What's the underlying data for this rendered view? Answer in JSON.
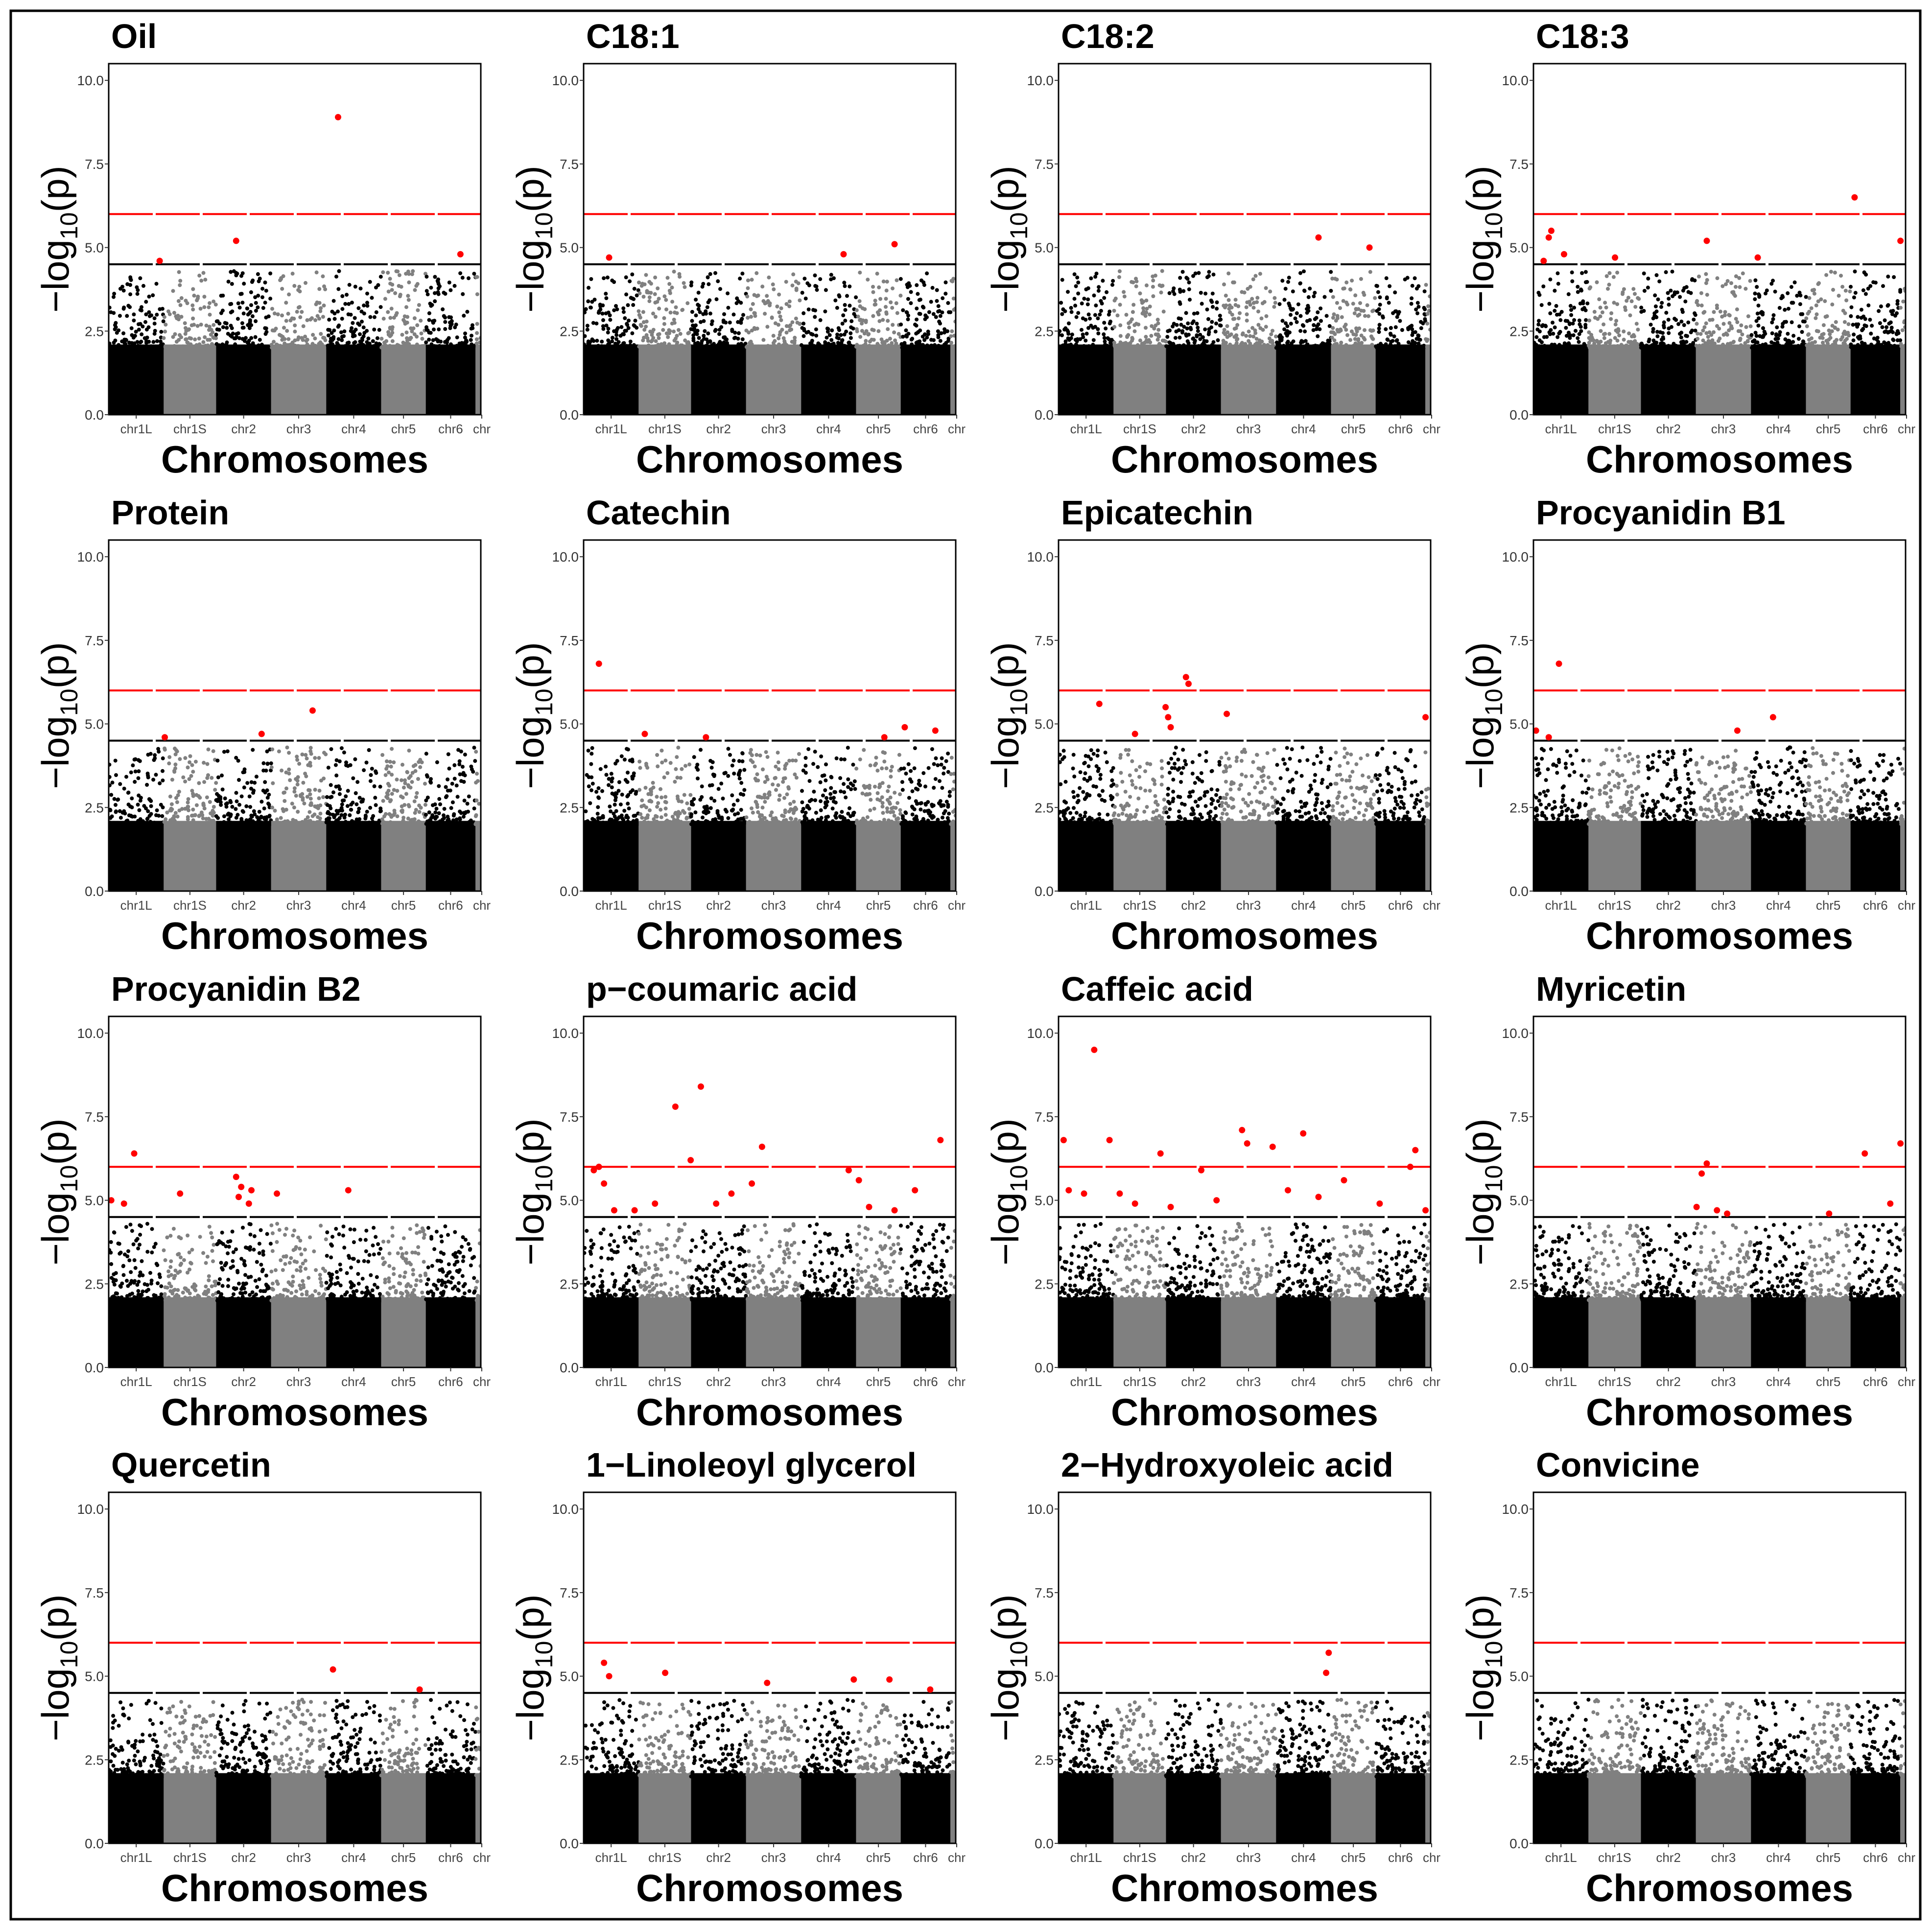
{
  "figure": {
    "border_color": "#000000",
    "background": "#ffffff"
  },
  "shared_axes": {
    "ylabel": "−log10(p)",
    "ylabel_main": "−log",
    "ylabel_sub": "10",
    "ylabel_arg": "(p)",
    "xlabel": "Chromosomes",
    "yticks": [
      "0.0",
      "2.5",
      "5.0",
      "7.5",
      "10.0"
    ],
    "ylim": [
      0,
      10.5
    ],
    "xticks": [
      "chr1L",
      "chr1S",
      "chr2",
      "chr3",
      "chr4",
      "chr5",
      "chr6",
      "chr"
    ],
    "significance_threshold": 6,
    "suggestive_threshold": 4.5,
    "colors": {
      "odd_chromosome": "#000000",
      "even_chromosome": "#808080",
      "significant_point": "#ff0000",
      "significance_line": "#ff0000",
      "suggestive_line": "#000000"
    }
  },
  "chart_data": [
    {
      "type": "scatter",
      "title": "Oil",
      "xlabel": "Chromosomes",
      "ylabel": "−log10(p)",
      "ylim": [
        0,
        10.5
      ],
      "peaks": [
        [
          1,
          4.6
        ],
        [
          2.5,
          5.2
        ],
        [
          4.5,
          8.9
        ],
        [
          6.9,
          4.8
        ]
      ]
    },
    {
      "type": "scatter",
      "title": "C18:1",
      "xlabel": "Chromosomes",
      "ylabel": "−log10(p)",
      "ylim": [
        0,
        10.5
      ],
      "peaks": [
        [
          0.5,
          4.7
        ],
        [
          5.1,
          4.8
        ],
        [
          6.1,
          5.1
        ]
      ]
    },
    {
      "type": "scatter",
      "title": "C18:2",
      "xlabel": "Chromosomes",
      "ylabel": "−log10(p)",
      "ylim": [
        0,
        10.5
      ],
      "peaks": [
        [
          5.1,
          5.3
        ],
        [
          6.1,
          5.0
        ]
      ]
    },
    {
      "type": "scatter",
      "title": "C18:3",
      "xlabel": "Chromosomes",
      "ylabel": "−log10(p)",
      "ylim": [
        0,
        10.5
      ],
      "peaks": [
        [
          0.2,
          4.6
        ],
        [
          0.3,
          5.3
        ],
        [
          0.35,
          5.5
        ],
        [
          0.6,
          4.8
        ],
        [
          1.6,
          4.7
        ],
        [
          3.4,
          5.2
        ],
        [
          4.4,
          4.7
        ],
        [
          6.3,
          6.5
        ],
        [
          7.2,
          5.2
        ]
      ]
    },
    {
      "type": "scatter",
      "title": "Protein",
      "xlabel": "Chromosomes",
      "ylabel": "−log10(p)",
      "ylim": [
        0,
        10.5
      ],
      "peaks": [
        [
          1.1,
          4.6
        ],
        [
          3.0,
          4.7
        ],
        [
          4.0,
          5.4
        ]
      ]
    },
    {
      "type": "scatter",
      "title": "Catechin",
      "xlabel": "Chromosomes",
      "ylabel": "−log10(p)",
      "ylim": [
        0,
        10.5
      ],
      "peaks": [
        [
          0.3,
          6.8
        ],
        [
          1.2,
          4.7
        ],
        [
          2.4,
          4.6
        ],
        [
          5.9,
          4.6
        ],
        [
          6.3,
          4.9
        ],
        [
          6.9,
          4.8
        ]
      ]
    },
    {
      "type": "scatter",
      "title": "Epicatechin",
      "xlabel": "Chromosomes",
      "ylabel": "−log10(p)",
      "ylim": [
        0,
        10.5
      ],
      "peaks": [
        [
          0.8,
          5.6
        ],
        [
          1.5,
          4.7
        ],
        [
          2.1,
          5.5
        ],
        [
          2.15,
          5.2
        ],
        [
          2.2,
          4.9
        ],
        [
          2.5,
          6.4
        ],
        [
          2.55,
          6.2
        ],
        [
          3.3,
          5.3
        ],
        [
          7.2,
          5.2
        ]
      ]
    },
    {
      "type": "scatter",
      "title": "Procyanidin B1",
      "xlabel": "Chromosomes",
      "ylabel": "−log10(p)",
      "ylim": [
        0,
        10.5
      ],
      "peaks": [
        [
          0.05,
          4.8
        ],
        [
          0.3,
          4.6
        ],
        [
          0.5,
          6.8
        ],
        [
          4.0,
          4.8
        ],
        [
          4.7,
          5.2
        ]
      ]
    },
    {
      "type": "scatter",
      "title": "Procyanidin B2",
      "xlabel": "Chromosomes",
      "ylabel": "−log10(p)",
      "ylim": [
        0,
        10.5
      ],
      "peaks": [
        [
          0.05,
          5.0
        ],
        [
          0.3,
          4.9
        ],
        [
          0.5,
          6.4
        ],
        [
          1.4,
          5.2
        ],
        [
          2.5,
          5.7
        ],
        [
          2.55,
          5.1
        ],
        [
          2.6,
          5.4
        ],
        [
          2.75,
          4.9
        ],
        [
          2.8,
          5.3
        ],
        [
          3.3,
          5.2
        ],
        [
          4.7,
          5.3
        ]
      ]
    },
    {
      "type": "scatter",
      "title": "p−coumaric acid",
      "xlabel": "Chromosomes",
      "ylabel": "−log10(p)",
      "ylim": [
        0,
        10.5
      ],
      "peaks": [
        [
          0.2,
          5.9
        ],
        [
          0.3,
          6.0
        ],
        [
          0.4,
          5.5
        ],
        [
          0.6,
          4.7
        ],
        [
          1.0,
          4.7
        ],
        [
          1.4,
          4.9
        ],
        [
          1.8,
          7.8
        ],
        [
          2.1,
          6.2
        ],
        [
          2.3,
          8.4
        ],
        [
          2.6,
          4.9
        ],
        [
          2.9,
          5.2
        ],
        [
          3.3,
          5.5
        ],
        [
          3.5,
          6.6
        ],
        [
          5.2,
          5.9
        ],
        [
          5.4,
          5.6
        ],
        [
          5.6,
          4.8
        ],
        [
          6.1,
          4.7
        ],
        [
          6.5,
          5.3
        ],
        [
          7.0,
          6.8
        ]
      ]
    },
    {
      "type": "scatter",
      "title": "Caffeic acid",
      "xlabel": "Chromosomes",
      "ylabel": "−log10(p)",
      "ylim": [
        0,
        10.5
      ],
      "peaks": [
        [
          0.1,
          6.8
        ],
        [
          0.2,
          5.3
        ],
        [
          0.5,
          5.2
        ],
        [
          0.7,
          9.5
        ],
        [
          1.0,
          6.8
        ],
        [
          1.2,
          5.2
        ],
        [
          1.5,
          4.9
        ],
        [
          2.0,
          6.4
        ],
        [
          2.2,
          4.8
        ],
        [
          2.8,
          5.9
        ],
        [
          3.1,
          5.0
        ],
        [
          3.6,
          7.1
        ],
        [
          3.7,
          6.7
        ],
        [
          4.2,
          6.6
        ],
        [
          4.5,
          5.3
        ],
        [
          4.8,
          7.0
        ],
        [
          5.1,
          5.1
        ],
        [
          5.6,
          5.6
        ],
        [
          6.3,
          4.9
        ],
        [
          6.9,
          6.0
        ],
        [
          7.0,
          6.5
        ],
        [
          7.2,
          4.7
        ]
      ]
    },
    {
      "type": "scatter",
      "title": "Myricetin",
      "xlabel": "Chromosomes",
      "ylabel": "−log10(p)",
      "ylim": [
        0,
        10.5
      ],
      "peaks": [
        [
          3.2,
          4.8
        ],
        [
          3.3,
          5.8
        ],
        [
          3.4,
          6.1
        ],
        [
          3.6,
          4.7
        ],
        [
          3.8,
          4.6
        ],
        [
          5.8,
          4.6
        ],
        [
          6.5,
          6.4
        ],
        [
          7.0,
          4.9
        ],
        [
          7.2,
          6.7
        ]
      ]
    },
    {
      "type": "scatter",
      "title": "Quercetin",
      "xlabel": "Chromosomes",
      "ylabel": "−log10(p)",
      "ylim": [
        0,
        10.5
      ],
      "peaks": [
        [
          4.4,
          5.2
        ],
        [
          6.1,
          4.6
        ]
      ]
    },
    {
      "type": "scatter",
      "title": "1−Linoleoyl glycerol",
      "xlabel": "Chromosomes",
      "ylabel": "−log10(p)",
      "ylim": [
        0,
        10.5
      ],
      "peaks": [
        [
          0.4,
          5.4
        ],
        [
          0.5,
          5.0
        ],
        [
          1.6,
          5.1
        ],
        [
          3.6,
          4.8
        ],
        [
          5.3,
          4.9
        ],
        [
          6.0,
          4.9
        ],
        [
          6.8,
          4.6
        ]
      ]
    },
    {
      "type": "scatter",
      "title": "2−Hydroxyoleic acid",
      "xlabel": "Chromosomes",
      "ylabel": "−log10(p)",
      "ylim": [
        0,
        10.5
      ],
      "peaks": [
        [
          5.3,
          5.7
        ],
        [
          5.25,
          5.1
        ]
      ]
    },
    {
      "type": "scatter",
      "title": "Convicine",
      "xlabel": "Chromosomes",
      "ylabel": "−log10(p)",
      "ylim": [
        0,
        10.5
      ],
      "peaks": []
    }
  ]
}
